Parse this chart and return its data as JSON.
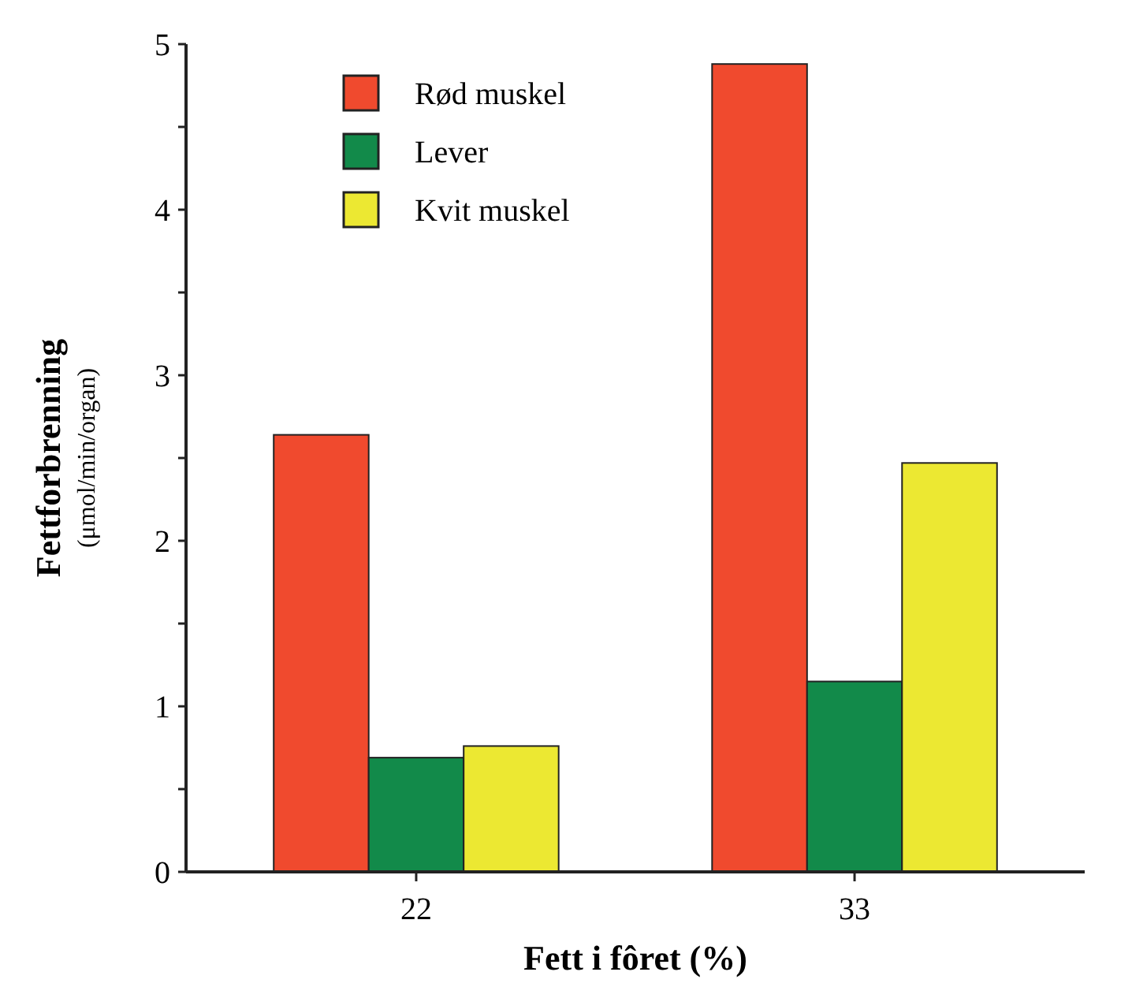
{
  "chart_data": {
    "type": "bar",
    "xlabel": "Fett i fôret (%)",
    "ylabel": "Fettforbrenning",
    "subtitle": "(μmol/min/organ)",
    "categories": [
      "22",
      "33"
    ],
    "series": [
      {
        "name": "Rød muskel",
        "color": "#f04a2e",
        "values": [
          2.64,
          4.88
        ]
      },
      {
        "name": "Lever",
        "color": "#128a4a",
        "values": [
          0.69,
          1.15
        ]
      },
      {
        "name": "Kvit muskel",
        "color": "#ece832",
        "values": [
          0.76,
          2.47
        ]
      }
    ],
    "ylim": [
      0,
      5
    ],
    "yticks": [
      0,
      {
        "value": 0.5,
        "label": null
      },
      1,
      {
        "value": 1.5,
        "label": null
      },
      2,
      {
        "value": 2.5,
        "label": null
      },
      3,
      {
        "value": 3.5,
        "label": null
      },
      4,
      {
        "value": 4.5,
        "label": null
      },
      5
    ],
    "grid": false,
    "legend": "top left"
  }
}
